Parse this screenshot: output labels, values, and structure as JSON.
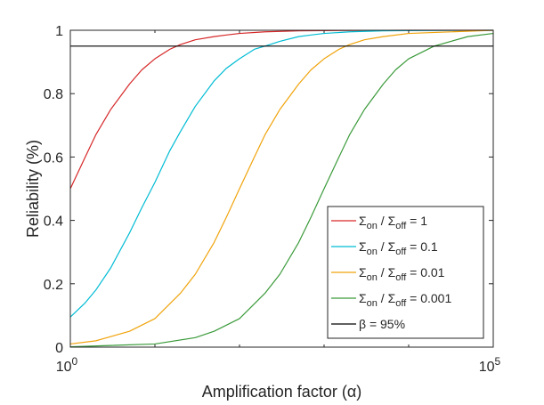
{
  "chart_data": {
    "type": "line",
    "title": "",
    "xlabel": "Amplification factor (α)",
    "ylabel": "Reliability (%)",
    "xscale": "log",
    "xlim": [
      1,
      100000
    ],
    "ylim": [
      0,
      1
    ],
    "grid": false,
    "legend_location": "bottom-right",
    "x_ticks": [
      {
        "value": 1,
        "base": "10",
        "exp": "0"
      },
      {
        "value": 100000,
        "base": "10",
        "exp": "5"
      }
    ],
    "y_ticks": [
      {
        "value": 0,
        "label": "0"
      },
      {
        "value": 0.2,
        "label": "0.2"
      },
      {
        "value": 0.4,
        "label": "0.4"
      },
      {
        "value": 0.6,
        "label": "0.6"
      },
      {
        "value": 0.8,
        "label": "0.8"
      },
      {
        "value": 1,
        "label": "1"
      }
    ],
    "series": [
      {
        "name": "Σon / Σoff = 1",
        "legend_parts": [
          "Σ",
          "on",
          " / Σ",
          "off",
          " = 1"
        ],
        "color": "#d62728",
        "x": [
          1,
          1.5,
          2,
          3,
          5,
          7,
          10,
          15,
          20,
          30,
          50,
          70,
          100,
          200,
          500,
          1000,
          10000,
          100000
        ],
        "y": [
          0.5,
          0.6,
          0.67,
          0.75,
          0.83,
          0.875,
          0.91,
          0.94,
          0.955,
          0.97,
          0.98,
          0.985,
          0.99,
          0.995,
          0.998,
          0.999,
          1.0,
          1.0
        ]
      },
      {
        "name": "Σon / Σoff = 0.1",
        "legend_parts": [
          "Σ",
          "on",
          " / Σ",
          "off",
          " = 0.1"
        ],
        "color": "#00bcd4",
        "x": [
          1,
          1.5,
          2,
          3,
          5,
          7,
          10,
          15,
          20,
          30,
          50,
          70,
          100,
          150,
          200,
          300,
          500,
          700,
          1000,
          2000,
          5000,
          10000,
          100000
        ],
        "y": [
          0.095,
          0.14,
          0.18,
          0.25,
          0.36,
          0.44,
          0.52,
          0.62,
          0.68,
          0.76,
          0.84,
          0.88,
          0.91,
          0.94,
          0.95,
          0.965,
          0.98,
          0.985,
          0.99,
          0.995,
          0.998,
          0.999,
          1.0
        ]
      },
      {
        "name": "Σon / Σoff = 0.01",
        "legend_parts": [
          "Σ",
          "on",
          " / Σ",
          "off",
          " = 0.01"
        ],
        "color": "#f0a30a",
        "x": [
          1,
          2,
          5,
          10,
          20,
          30,
          50,
          70,
          100,
          150,
          200,
          300,
          500,
          700,
          1000,
          1500,
          2000,
          3000,
          5000,
          10000,
          100000
        ],
        "y": [
          0.01,
          0.02,
          0.05,
          0.09,
          0.17,
          0.23,
          0.33,
          0.41,
          0.5,
          0.6,
          0.67,
          0.75,
          0.83,
          0.875,
          0.91,
          0.94,
          0.955,
          0.97,
          0.98,
          0.99,
          1.0
        ]
      },
      {
        "name": "Σon / Σoff = 0.001",
        "legend_parts": [
          "Σ",
          "on",
          " / Σ",
          "off",
          " = 0.001"
        ],
        "color": "#3a9a3a",
        "x": [
          1,
          10,
          30,
          50,
          100,
          200,
          300,
          500,
          700,
          1000,
          1500,
          2000,
          3000,
          5000,
          7000,
          10000,
          20000,
          50000,
          100000
        ],
        "y": [
          0.001,
          0.01,
          0.03,
          0.05,
          0.09,
          0.17,
          0.23,
          0.33,
          0.41,
          0.5,
          0.6,
          0.67,
          0.75,
          0.83,
          0.875,
          0.91,
          0.95,
          0.98,
          0.99
        ]
      },
      {
        "name": "β = 95%",
        "legend_parts": [
          "β",
          " = 95%"
        ],
        "color": "#000000",
        "x": [
          1,
          100000
        ],
        "y": [
          0.95,
          0.95
        ]
      }
    ]
  }
}
